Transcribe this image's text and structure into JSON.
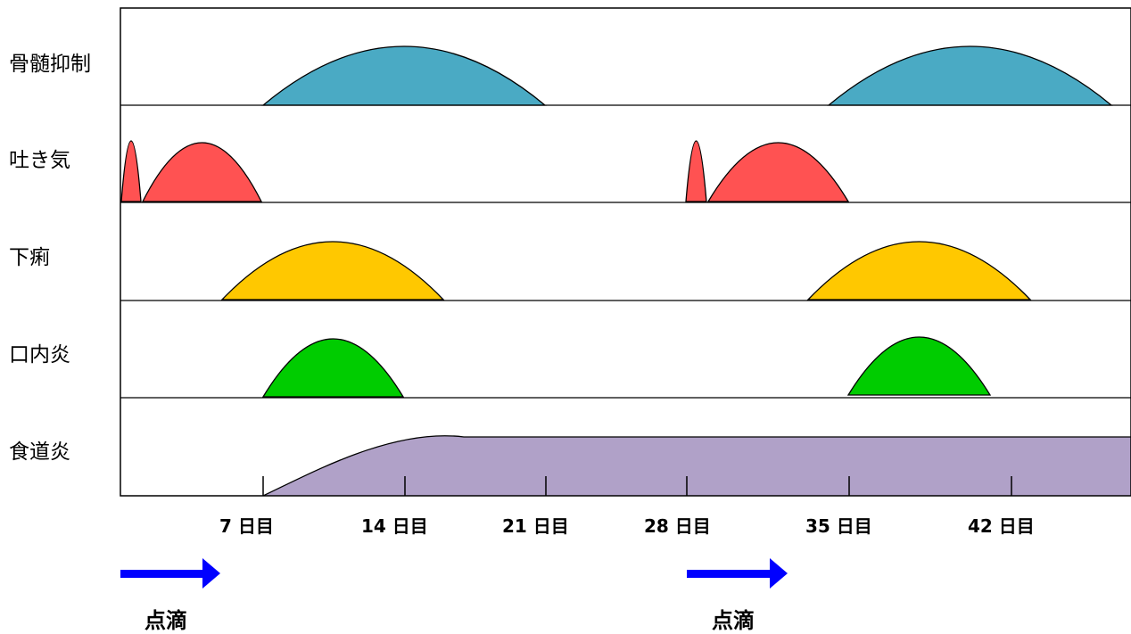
{
  "rows": [
    {
      "label": "骨髄抑制",
      "color": "#4aaac4"
    },
    {
      "label": "吐き気",
      "color": "#ff5252"
    },
    {
      "label": "下痢",
      "color": "#ffc800"
    },
    {
      "label": "口内炎",
      "color": "#00cc00"
    },
    {
      "label": "食道炎",
      "color": "#b0a1c8"
    }
  ],
  "ticks": [
    {
      "day": 7,
      "label": "7 日目"
    },
    {
      "day": 14,
      "label": "14 日目"
    },
    {
      "day": 21,
      "label": "21 日目"
    },
    {
      "day": 28,
      "label": "28 日目"
    },
    {
      "day": 35,
      "label": "35 日目"
    },
    {
      "day": 42,
      "label": "42 日目"
    }
  ],
  "drips": [
    {
      "label": "点滴",
      "color": "#0000ff"
    },
    {
      "label": "点滴",
      "color": "#0000ff"
    }
  ]
}
